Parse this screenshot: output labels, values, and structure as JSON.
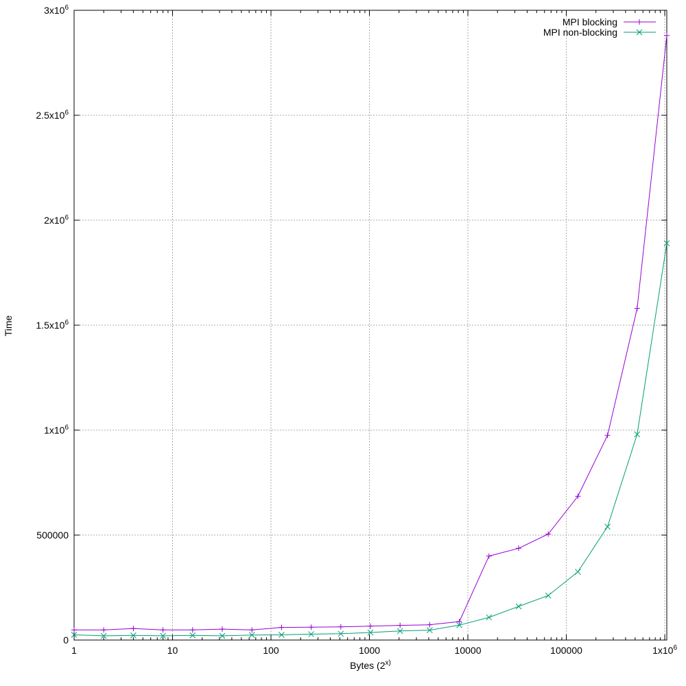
{
  "chart_data": {
    "type": "line",
    "xlabel": "Bytes (2^x)",
    "ylabel": "Time",
    "x_scale": "log",
    "xlim": [
      1,
      1048576
    ],
    "ylim": [
      0,
      3000000
    ],
    "grid": true,
    "legend_position": "top-right",
    "x_ticks": [
      {
        "value": 1,
        "label": "1"
      },
      {
        "value": 10,
        "label": "10"
      },
      {
        "value": 100,
        "label": "100"
      },
      {
        "value": 1000,
        "label": "1000"
      },
      {
        "value": 10000,
        "label": "10000"
      },
      {
        "value": 100000,
        "label": "100000"
      },
      {
        "value": 1000000,
        "label": "1x10^6"
      }
    ],
    "y_ticks": [
      {
        "value": 0,
        "label": "0"
      },
      {
        "value": 500000,
        "label": "500000"
      },
      {
        "value": 1000000,
        "label": "1x10^6"
      },
      {
        "value": 1500000,
        "label": "1.5x10^6"
      },
      {
        "value": 2000000,
        "label": "2x10^6"
      },
      {
        "value": 2500000,
        "label": "2.5x10^6"
      },
      {
        "value": 3000000,
        "label": "3x10^6"
      }
    ],
    "x": [
      1,
      2,
      4,
      8,
      16,
      32,
      64,
      128,
      256,
      512,
      1024,
      2048,
      4096,
      8192,
      16384,
      32768,
      65536,
      131072,
      262144,
      524288,
      1048576
    ],
    "series": [
      {
        "name": "MPI blocking",
        "color": "#9400d3",
        "marker": "plus",
        "values": [
          48000,
          48000,
          55000,
          48000,
          48000,
          52000,
          48000,
          60000,
          61000,
          63000,
          66000,
          70000,
          73000,
          88000,
          400000,
          437000,
          505000,
          685000,
          975000,
          1580000,
          2880000
        ]
      },
      {
        "name": "MPI non-blocking",
        "color": "#009e73",
        "marker": "cross",
        "values": [
          25000,
          20000,
          22000,
          20000,
          22000,
          20000,
          24000,
          25000,
          28000,
          30000,
          36000,
          43000,
          47000,
          71000,
          108000,
          160000,
          212000,
          325000,
          540000,
          980000,
          1890000
        ]
      }
    ]
  }
}
